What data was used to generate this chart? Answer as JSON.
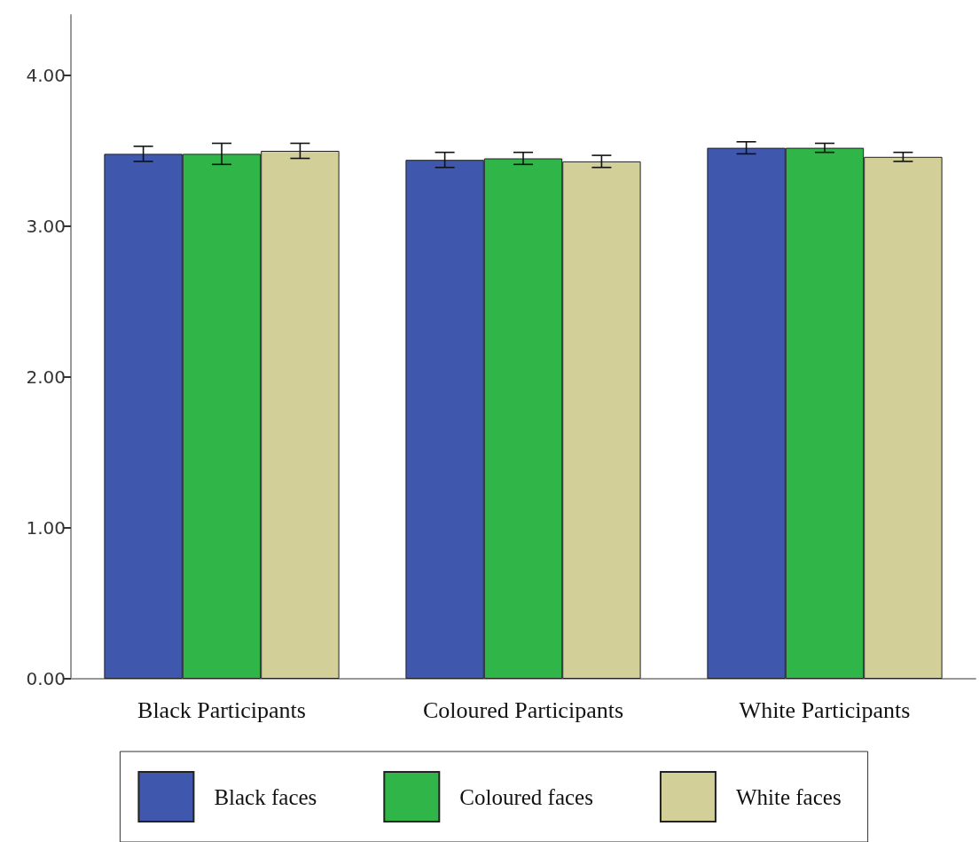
{
  "chart_data": {
    "type": "bar",
    "categories": [
      "Black Participants",
      "Coloured Participants",
      "White Participants"
    ],
    "series": [
      {
        "name": "Black faces",
        "color": "#3f58ad",
        "values": [
          3.48,
          3.44,
          3.52
        ],
        "errors": [
          0.05,
          0.05,
          0.04
        ]
      },
      {
        "name": "Coloured faces",
        "color": "#30b648",
        "values": [
          3.48,
          3.45,
          3.52
        ],
        "errors": [
          0.07,
          0.04,
          0.03
        ]
      },
      {
        "name": "White faces",
        "color": "#d3cf98",
        "values": [
          3.5,
          3.43,
          3.46
        ],
        "errors": [
          0.05,
          0.04,
          0.03
        ]
      }
    ],
    "ylim": [
      0,
      4.4
    ],
    "yticks": [
      {
        "value": 0,
        "label": "0.00"
      },
      {
        "value": 1,
        "label": "1.00"
      },
      {
        "value": 2,
        "label": "2.00"
      },
      {
        "value": 3,
        "label": "3.00"
      },
      {
        "value": 4,
        "label": "4.00"
      }
    ],
    "grid": false,
    "legend": "bottom"
  }
}
